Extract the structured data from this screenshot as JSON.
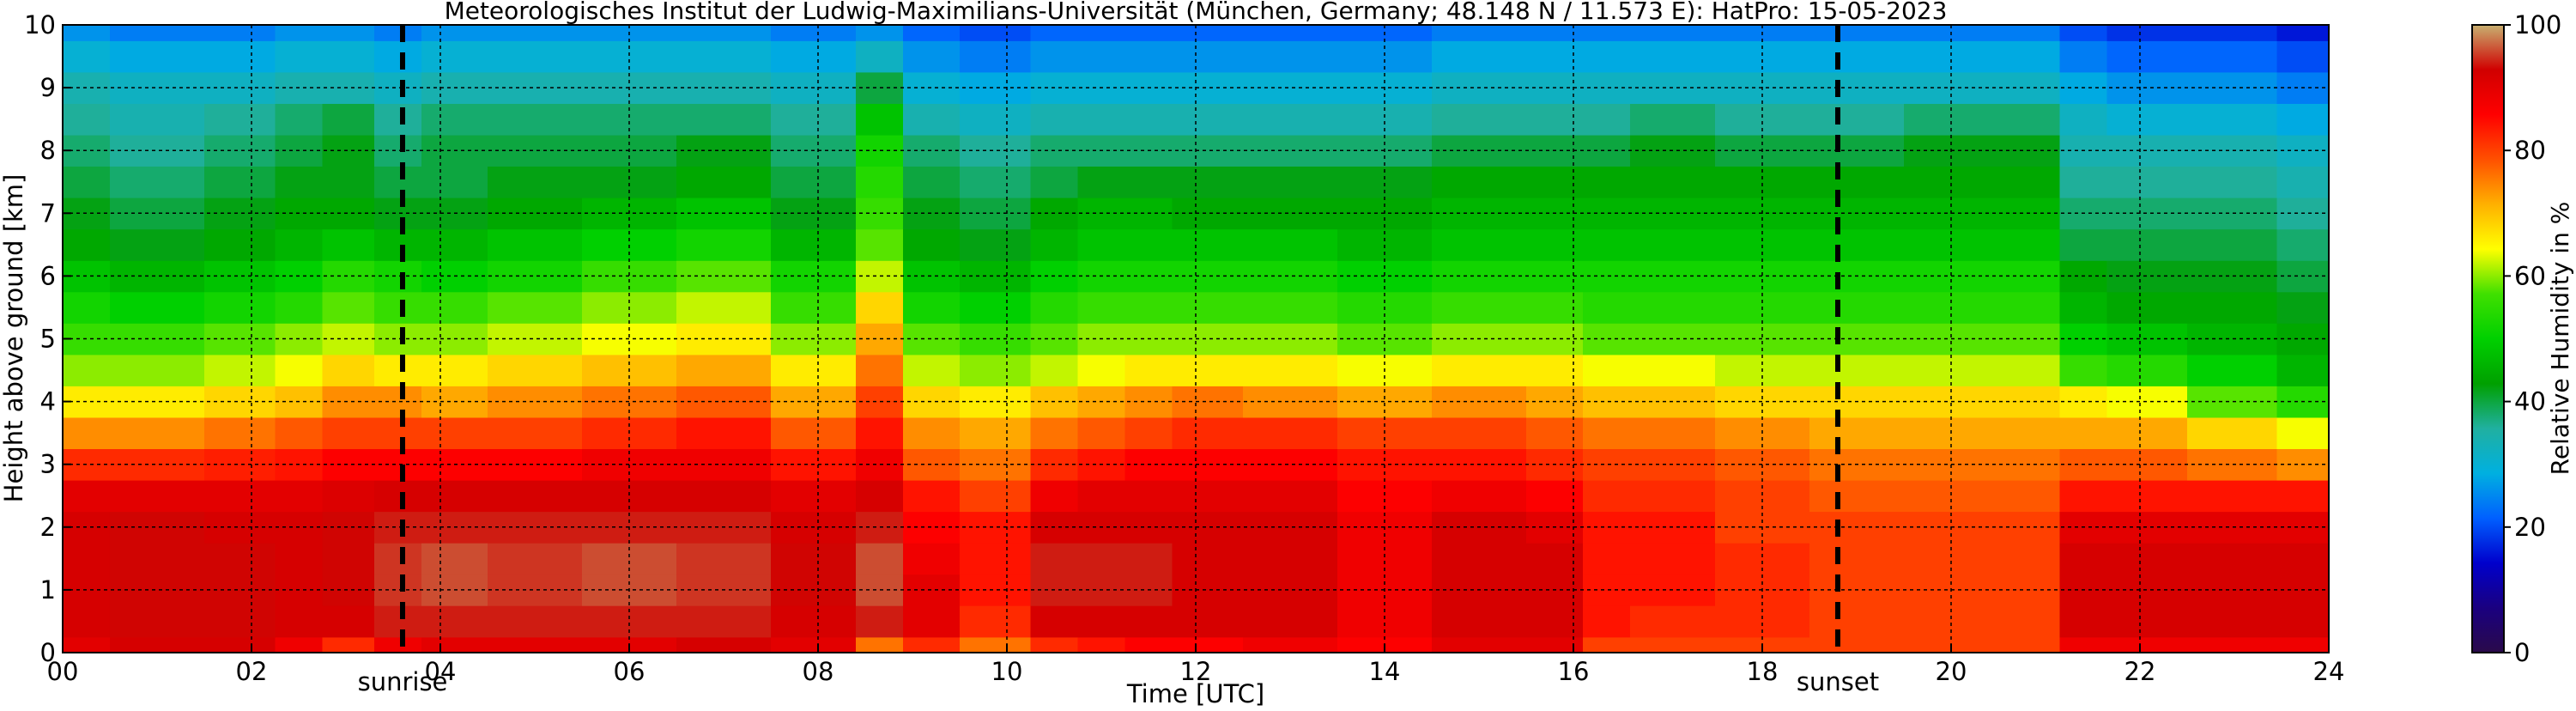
{
  "chart_data": {
    "type": "heatmap",
    "title": "Meteorologisches Institut der Ludwig-Maximilians-Universität (München, Germany; 48.148 N / 11.573 E):    HatPro: 15-05-2023",
    "xlabel": "Time [UTC]",
    "ylabel": "Height above ground [km]",
    "colorbar_label": "Relative Humidity in %",
    "xlim": [
      0,
      24
    ],
    "ylim": [
      0,
      10
    ],
    "x_ticks": [
      "00",
      "02",
      "04",
      "06",
      "08",
      "10",
      "12",
      "14",
      "16",
      "18",
      "20",
      "22",
      "24"
    ],
    "y_ticks": [
      "0",
      "1",
      "2",
      "3",
      "4",
      "5",
      "6",
      "7",
      "8",
      "9",
      "10"
    ],
    "colorbar_ticks": [
      "0",
      "20",
      "40",
      "60",
      "80",
      "100"
    ],
    "colorbar_range": [
      0,
      100
    ],
    "grid": true,
    "markers": [
      {
        "label": "sunrise",
        "time": 3.6
      },
      {
        "label": "sunset",
        "time": 18.8
      }
    ],
    "colormap": [
      "#2a0a4a",
      "#1a0080",
      "#0000cc",
      "#0060ff",
      "#00b0e0",
      "#20b0a0",
      "#00a000",
      "#00d000",
      "#40e000",
      "#ffff00",
      "#ffb000",
      "#ff5000",
      "#ff0000",
      "#d00000",
      "#c8b070"
    ],
    "times_h": [
      0,
      1,
      2,
      2.5,
      3,
      3.6,
      4,
      5,
      6,
      7,
      8,
      8.8,
      9,
      10,
      10.5,
      11,
      11.5,
      12,
      13,
      14,
      15,
      16,
      16.2,
      17,
      18,
      19,
      20,
      21,
      21.3,
      22,
      23,
      23.9
    ],
    "heights_km": [
      0.0,
      0.5,
      1.0,
      1.5,
      2.0,
      2.5,
      3.0,
      3.5,
      4.0,
      4.5,
      5.0,
      5.5,
      6.0,
      6.5,
      7.0,
      7.5,
      8.0,
      8.5,
      9.0,
      9.5,
      10.0
    ],
    "rh_percent": [
      [
        90,
        92,
        92,
        92,
        92,
        90,
        82,
        74,
        66,
        60,
        56,
        52,
        48,
        44,
        42,
        40,
        38,
        36,
        34,
        30,
        26
      ],
      [
        92,
        93,
        93,
        93,
        93,
        90,
        82,
        74,
        66,
        60,
        56,
        50,
        46,
        42,
        40,
        38,
        36,
        34,
        32,
        28,
        24
      ],
      [
        92,
        93,
        93,
        93,
        92,
        90,
        83,
        76,
        68,
        62,
        58,
        52,
        48,
        44,
        42,
        40,
        38,
        36,
        32,
        28,
        24
      ],
      [
        88,
        92,
        92,
        92,
        92,
        90,
        84,
        78,
        70,
        64,
        60,
        54,
        50,
        46,
        44,
        42,
        40,
        38,
        34,
        30,
        26
      ],
      [
        82,
        92,
        93,
        93,
        93,
        91,
        86,
        80,
        74,
        68,
        62,
        58,
        54,
        48,
        44,
        42,
        42,
        40,
        34,
        30,
        26
      ],
      [
        88,
        94,
        95,
        95,
        94,
        92,
        86,
        80,
        74,
        66,
        60,
        56,
        52,
        46,
        42,
        40,
        38,
        36,
        32,
        28,
        24
      ],
      [
        90,
        94,
        96,
        96,
        94,
        92,
        86,
        80,
        72,
        66,
        60,
        56,
        50,
        46,
        42,
        40,
        40,
        38,
        34,
        30,
        26
      ],
      [
        90,
        94,
        95,
        95,
        94,
        92,
        86,
        80,
        74,
        68,
        62,
        58,
        52,
        48,
        44,
        42,
        40,
        38,
        34,
        30,
        26
      ],
      [
        90,
        94,
        96,
        96,
        94,
        92,
        88,
        82,
        76,
        70,
        64,
        60,
        56,
        50,
        46,
        42,
        40,
        38,
        34,
        30,
        26
      ],
      [
        92,
        94,
        95,
        95,
        94,
        92,
        88,
        84,
        78,
        72,
        66,
        62,
        58,
        52,
        48,
        44,
        42,
        38,
        34,
        30,
        26
      ],
      [
        90,
        92,
        93,
        93,
        92,
        90,
        84,
        78,
        72,
        66,
        60,
        56,
        52,
        46,
        42,
        40,
        38,
        36,
        32,
        28,
        24
      ],
      [
        76,
        94,
        96,
        96,
        94,
        92,
        88,
        84,
        80,
        76,
        72,
        68,
        62,
        58,
        56,
        54,
        52,
        48,
        40,
        32,
        26
      ],
      [
        82,
        90,
        90,
        88,
        86,
        84,
        78,
        74,
        68,
        62,
        58,
        52,
        48,
        44,
        42,
        40,
        38,
        34,
        30,
        26,
        22
      ],
      [
        76,
        82,
        84,
        84,
        84,
        80,
        76,
        72,
        66,
        60,
        56,
        50,
        46,
        42,
        40,
        38,
        36,
        32,
        28,
        24,
        20
      ],
      [
        82,
        92,
        94,
        94,
        92,
        88,
        82,
        76,
        70,
        62,
        58,
        54,
        50,
        46,
        44,
        40,
        38,
        34,
        30,
        26,
        22
      ],
      [
        84,
        92,
        94,
        94,
        92,
        90,
        84,
        78,
        72,
        64,
        60,
        56,
        52,
        48,
        46,
        42,
        38,
        34,
        30,
        26,
        22
      ],
      [
        86,
        92,
        94,
        94,
        92,
        90,
        86,
        80,
        74,
        66,
        60,
        56,
        52,
        48,
        46,
        42,
        38,
        34,
        30,
        26,
        22
      ],
      [
        86,
        92,
        92,
        92,
        92,
        90,
        86,
        82,
        76,
        66,
        60,
        56,
        52,
        48,
        44,
        42,
        38,
        34,
        30,
        26,
        22
      ],
      [
        88,
        92,
        92,
        92,
        92,
        90,
        86,
        82,
        74,
        66,
        60,
        56,
        52,
        48,
        44,
        42,
        38,
        34,
        30,
        26,
        22
      ],
      [
        86,
        88,
        88,
        88,
        88,
        86,
        84,
        80,
        72,
        64,
        58,
        54,
        50,
        46,
        44,
        42,
        38,
        34,
        30,
        26,
        22
      ],
      [
        90,
        92,
        92,
        92,
        92,
        88,
        84,
        80,
        74,
        66,
        60,
        56,
        52,
        48,
        46,
        44,
        40,
        36,
        32,
        28,
        24
      ],
      [
        90,
        92,
        92,
        92,
        90,
        86,
        82,
        78,
        72,
        66,
        60,
        56,
        52,
        48,
        46,
        44,
        40,
        36,
        32,
        28,
        24
      ],
      [
        80,
        84,
        84,
        84,
        84,
        82,
        80,
        76,
        70,
        64,
        58,
        54,
        52,
        48,
        46,
        44,
        40,
        36,
        32,
        28,
        24
      ],
      [
        80,
        82,
        84,
        84,
        84,
        82,
        80,
        76,
        70,
        64,
        58,
        54,
        52,
        48,
        46,
        44,
        42,
        38,
        32,
        28,
        24
      ],
      [
        80,
        82,
        82,
        82,
        80,
        80,
        78,
        74,
        68,
        62,
        58,
        54,
        52,
        48,
        46,
        44,
        40,
        36,
        32,
        28,
        24
      ],
      [
        80,
        80,
        80,
        80,
        80,
        78,
        76,
        72,
        68,
        62,
        58,
        54,
        52,
        48,
        46,
        44,
        40,
        36,
        32,
        28,
        24
      ],
      [
        80,
        80,
        80,
        80,
        80,
        78,
        76,
        72,
        68,
        62,
        58,
        54,
        52,
        48,
        46,
        44,
        42,
        38,
        32,
        28,
        24
      ],
      [
        80,
        80,
        80,
        80,
        80,
        78,
        76,
        72,
        68,
        62,
        58,
        54,
        52,
        48,
        46,
        44,
        42,
        38,
        32,
        28,
        24
      ],
      [
        88,
        92,
        92,
        92,
        90,
        84,
        78,
        72,
        66,
        56,
        50,
        46,
        44,
        40,
        38,
        36,
        34,
        32,
        28,
        24,
        20
      ],
      [
        88,
        92,
        92,
        92,
        90,
        84,
        78,
        72,
        64,
        54,
        48,
        44,
        42,
        40,
        38,
        36,
        34,
        30,
        26,
        22,
        18
      ],
      [
        88,
        92,
        92,
        92,
        90,
        84,
        76,
        68,
        58,
        50,
        46,
        44,
        42,
        40,
        38,
        36,
        34,
        30,
        26,
        22,
        18
      ],
      [
        88,
        92,
        92,
        92,
        90,
        84,
        74,
        64,
        54,
        46,
        44,
        42,
        40,
        38,
        36,
        34,
        32,
        28,
        24,
        20,
        16
      ]
    ]
  }
}
